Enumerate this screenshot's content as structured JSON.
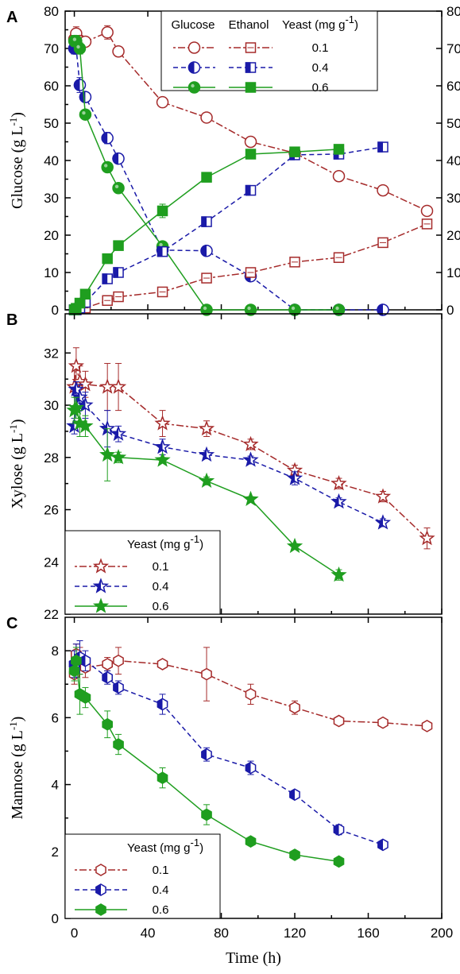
{
  "colors": {
    "d01": "#a52a2a",
    "d04": "#1a1aa8",
    "d06": "#1f9e1f"
  },
  "xaxis": {
    "label": "Time (h)",
    "range": [
      -5,
      200
    ],
    "ticks": [
      0,
      40,
      80,
      120,
      160,
      200
    ]
  },
  "chart_data": [
    {
      "panel": "A",
      "type": "line",
      "ylabel": "Glucose (g L⁻¹)",
      "ylim": [
        0,
        80
      ],
      "yticks": [
        0,
        10,
        20,
        30,
        40,
        50,
        60,
        70,
        80
      ],
      "right_axis": true,
      "legend": {
        "headers": [
          "Glucose",
          "Ethanol",
          "Yeast (mg g⁻¹)"
        ],
        "rows": [
          "0.1",
          "0.4",
          "0.6"
        ],
        "placement": "top-right"
      },
      "series": [
        {
          "key": "glucose_0.1",
          "group": "d01",
          "marker": "circle-open",
          "dash": "3,3,9,3",
          "x": [
            0,
            1,
            3,
            6,
            18,
            24,
            48,
            72,
            96,
            120,
            144,
            168,
            192
          ],
          "y": [
            72.5,
            74,
            72,
            71.8,
            74.3,
            69.2,
            55.6,
            51.5,
            45,
            42,
            35.8,
            32,
            26.5
          ],
          "err": [
            1.5,
            1.8,
            1.5,
            1,
            1.8,
            1,
            0.8,
            0.8,
            0.8,
            0.6,
            0.6,
            0.6,
            0.8
          ]
        },
        {
          "key": "glucose_0.4",
          "group": "d04",
          "marker": "circle-half",
          "dash": "6,4",
          "x": [
            0,
            1,
            3,
            6,
            18,
            24,
            48,
            72,
            96,
            120,
            144,
            168
          ],
          "y": [
            70,
            70,
            60.2,
            57,
            46,
            40.5,
            16,
            15.8,
            9,
            0,
            0,
            0
          ],
          "err": [
            1.5,
            1.5,
            2,
            1,
            1.5,
            0.8,
            1.5,
            1,
            0.8,
            0,
            0,
            0
          ]
        },
        {
          "key": "glucose_0.6",
          "group": "d06",
          "marker": "circle-filled",
          "dash": "",
          "x": [
            0,
            1,
            3,
            6,
            18,
            24,
            48,
            72,
            96,
            120,
            144
          ],
          "y": [
            72,
            72,
            70,
            52.3,
            38.2,
            32.6,
            17,
            0,
            0,
            0,
            0
          ],
          "err": [
            1.5,
            1.5,
            1.5,
            1,
            1,
            1,
            1,
            0,
            0,
            0,
            0
          ]
        },
        {
          "key": "ethanol_0.1",
          "group": "d01",
          "marker": "square-open",
          "dash": "3,3,9,3",
          "x": [
            0,
            1,
            3,
            6,
            18,
            24,
            48,
            72,
            96,
            120,
            144,
            168,
            192
          ],
          "y": [
            0,
            0,
            0.3,
            0.5,
            2.5,
            3.5,
            4.8,
            8.5,
            10,
            12.8,
            14,
            18,
            23
          ],
          "err": [
            0,
            0,
            0.3,
            0.3,
            0.5,
            0.5,
            0.6,
            0.6,
            0.6,
            0.8,
            0.6,
            0.8,
            0.8
          ]
        },
        {
          "key": "ethanol_0.4",
          "group": "d04",
          "marker": "square-half",
          "dash": "6,4",
          "x": [
            0,
            1,
            3,
            6,
            18,
            24,
            48,
            72,
            96,
            120,
            144,
            168
          ],
          "y": [
            0,
            0,
            0.5,
            2,
            8.3,
            10,
            15.6,
            23.6,
            32,
            41.5,
            41.7,
            43.6
          ],
          "err": [
            0,
            0,
            0.3,
            0.5,
            0.8,
            0.8,
            1,
            1,
            1,
            1,
            1,
            1
          ]
        },
        {
          "key": "ethanol_0.6",
          "group": "d06",
          "marker": "square-filled",
          "dash": "",
          "x": [
            0,
            1,
            3,
            6,
            18,
            24,
            48,
            72,
            96,
            120,
            144
          ],
          "y": [
            0,
            0.4,
            1.8,
            4.2,
            13.7,
            17.2,
            26.5,
            35.5,
            41.7,
            42.3,
            43
          ],
          "err": [
            0,
            0.3,
            0.5,
            0.6,
            0.8,
            0.8,
            1.8,
            1,
            1,
            1,
            1
          ]
        }
      ]
    },
    {
      "panel": "B",
      "type": "line",
      "ylabel": "Xylose (g L⁻¹)",
      "ylim": [
        22,
        33.5
      ],
      "yticks": [
        22,
        24,
        26,
        28,
        30,
        32
      ],
      "right_axis": false,
      "legend": {
        "headers": [
          "Yeast (mg g⁻¹)"
        ],
        "rows": [
          "0.1",
          "0.4",
          "0.6"
        ],
        "placement": "bottom-left"
      },
      "series": [
        {
          "key": "xylose_0.1",
          "group": "d01",
          "marker": "star-open",
          "dash": "3,3,9,3",
          "x": [
            0,
            1,
            3,
            6,
            18,
            24,
            48,
            72,
            96,
            120,
            144,
            168,
            192
          ],
          "y": [
            30.7,
            31.5,
            30.9,
            30.8,
            30.7,
            30.7,
            29.3,
            29.1,
            28.5,
            27.5,
            27,
            26.5,
            24.9
          ],
          "err": [
            0.8,
            0.7,
            0.6,
            0.5,
            0.9,
            0.9,
            0.5,
            0.3,
            0.2,
            0.2,
            0.2,
            0.2,
            0.4
          ]
        },
        {
          "key": "xylose_0.4",
          "group": "d04",
          "marker": "star-half",
          "dash": "6,4",
          "x": [
            0,
            1,
            3,
            6,
            18,
            24,
            48,
            72,
            96,
            120,
            144,
            168
          ],
          "y": [
            29.2,
            30.6,
            30.3,
            30,
            29.1,
            28.9,
            28.4,
            28.1,
            27.9,
            27.2,
            26.3,
            25.5
          ],
          "err": [
            0.3,
            0.3,
            0.5,
            0.5,
            0.7,
            0.3,
            0.3,
            0.15,
            0.15,
            0.25,
            0.15,
            0.15
          ]
        },
        {
          "key": "xylose_0.6",
          "group": "d06",
          "marker": "star-filled",
          "dash": "",
          "x": [
            0,
            1,
            3,
            6,
            18,
            24,
            48,
            72,
            96,
            120,
            144
          ],
          "y": [
            29.8,
            29.9,
            29.3,
            29.2,
            28.1,
            28,
            27.9,
            27.1,
            26.4,
            24.6,
            23.5
          ],
          "err": [
            0.5,
            0.4,
            0.5,
            0.4,
            1,
            0.2,
            0.1,
            0.15,
            0.1,
            0.1,
            0.2
          ]
        }
      ]
    },
    {
      "panel": "C",
      "type": "line",
      "ylabel": "Mannose (g L⁻¹)",
      "ylim": [
        0,
        9
      ],
      "yticks": [
        0,
        2,
        4,
        6,
        8
      ],
      "right_axis": false,
      "legend": {
        "headers": [
          "Yeast (mg g⁻¹)"
        ],
        "rows": [
          "0.1",
          "0.4",
          "0.6"
        ],
        "placement": "bottom-left"
      },
      "series": [
        {
          "key": "mannose_0.1",
          "group": "d01",
          "marker": "hex-open",
          "dash": "3,3,9,3",
          "x": [
            0,
            1,
            3,
            6,
            18,
            24,
            48,
            72,
            96,
            120,
            144,
            168,
            192
          ],
          "y": [
            7.3,
            7.9,
            7.7,
            7.5,
            7.6,
            7.7,
            7.6,
            7.3,
            6.7,
            6.3,
            5.9,
            5.85,
            5.75
          ],
          "err": [
            0.3,
            0.3,
            0.4,
            0.3,
            0.2,
            0.4,
            0.1,
            0.8,
            0.3,
            0.2,
            0.1,
            0.1,
            0.1
          ]
        },
        {
          "key": "mannose_0.4",
          "group": "d04",
          "marker": "hex-half",
          "dash": "6,4",
          "x": [
            0,
            1,
            3,
            6,
            18,
            24,
            48,
            72,
            96,
            120,
            144,
            168
          ],
          "y": [
            7.6,
            7.7,
            7.8,
            7.7,
            7.2,
            6.9,
            6.4,
            4.9,
            4.5,
            3.7,
            2.65,
            2.2
          ],
          "err": [
            0.4,
            0.5,
            0.5,
            0.3,
            0.2,
            0.2,
            0.3,
            0.2,
            0.2,
            0.1,
            0.15,
            0.1
          ]
        },
        {
          "key": "mannose_0.6",
          "group": "d06",
          "marker": "hex-filled",
          "dash": "",
          "x": [
            0,
            1,
            3,
            6,
            18,
            24,
            48,
            72,
            96,
            120,
            144
          ],
          "y": [
            7.4,
            7.7,
            6.7,
            6.6,
            5.8,
            5.2,
            4.2,
            3.1,
            2.3,
            1.9,
            1.7
          ],
          "err": [
            0.3,
            0.4,
            0.6,
            0.3,
            0.4,
            0.3,
            0.3,
            0.3,
            0.1,
            0.1,
            0.1
          ]
        }
      ]
    }
  ]
}
